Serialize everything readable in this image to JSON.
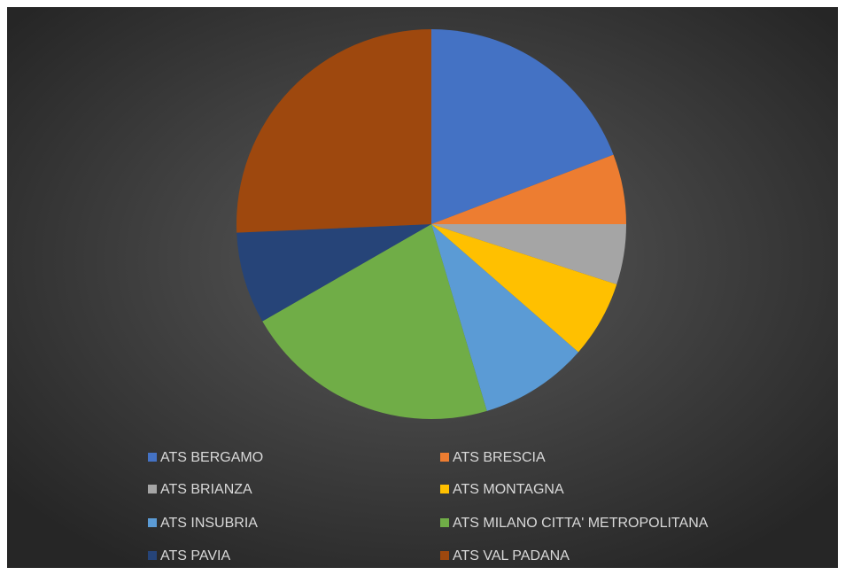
{
  "chart_data": {
    "type": "pie",
    "categories": [
      "ATS BERGAMO",
      "ATS BRESCIA",
      "ATS BRIANZA",
      "ATS MONTAGNA",
      "ATS INSUBRIA",
      "ATS MILANO CITTA' METROPOLITANA",
      "ATS PAVIA",
      "ATS VAL PADANA"
    ],
    "values": [
      19.2,
      5.8,
      5.0,
      6.4,
      9.0,
      21.3,
      7.6,
      25.7
    ],
    "colors": [
      "#4472c4",
      "#ed7d31",
      "#a5a5a5",
      "#ffc000",
      "#5b9bd5",
      "#70ad47",
      "#264478",
      "#9e480e"
    ]
  }
}
